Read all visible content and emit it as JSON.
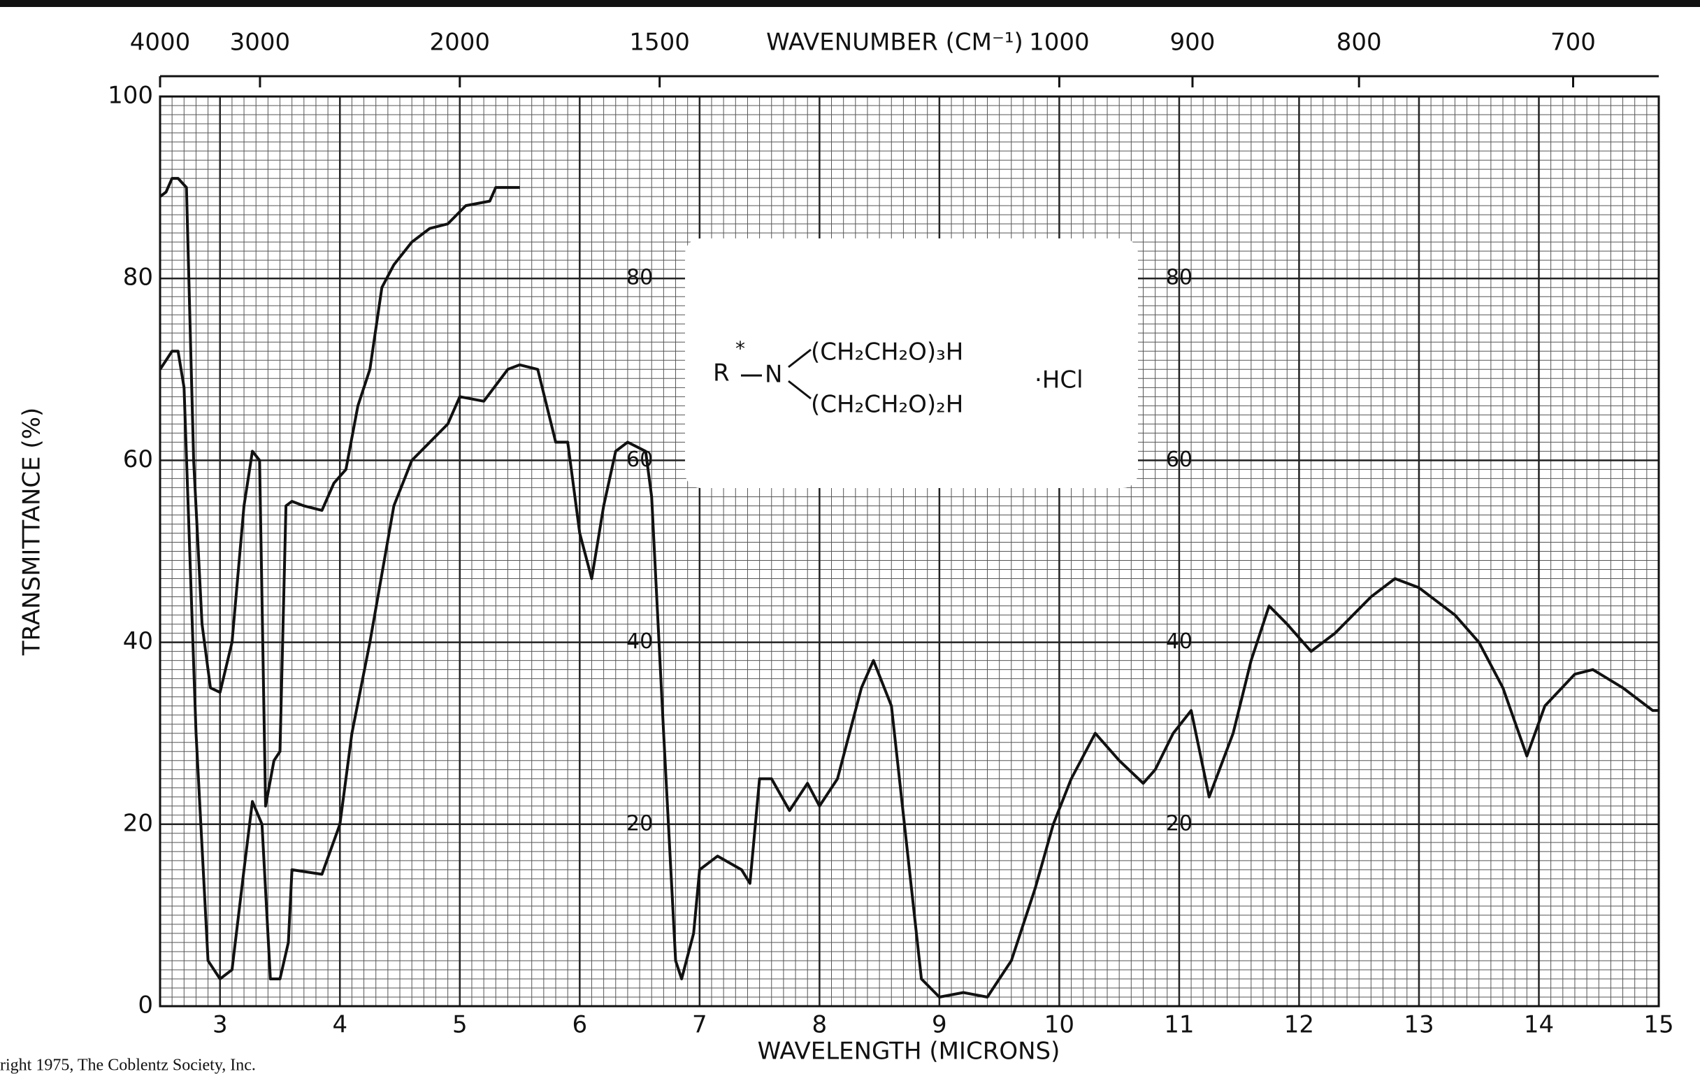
{
  "chart_data": {
    "type": "line",
    "title_top": "WAVENUMBER (CM⁻¹)",
    "xlabel": "WAVELENGTH (MICRONS)",
    "ylabel": "TRANSMITTANCE (%)",
    "xlim": [
      2.5,
      15
    ],
    "ylim": [
      0,
      100
    ],
    "xticks": [
      3,
      4,
      5,
      6,
      7,
      8,
      9,
      10,
      11,
      12,
      13,
      14,
      15
    ],
    "yticks": [
      0,
      20,
      40,
      60,
      80,
      100
    ],
    "wavenumber_ticks": [
      4000,
      3000,
      2000,
      1500,
      1000,
      900,
      800,
      700
    ],
    "inner_yticks": [
      20,
      40,
      60,
      80
    ],
    "grid": true,
    "series": [
      {
        "color": "#111111",
        "x": [
          2.5,
          2.55,
          2.6,
          2.65,
          2.72,
          2.78,
          2.85,
          2.92,
          3.0,
          3.1,
          3.2,
          3.27,
          3.33,
          3.38,
          3.45,
          3.5,
          3.55,
          3.6,
          3.7,
          3.85,
          3.95,
          4.05,
          4.15,
          4.25,
          4.35,
          4.45,
          4.6,
          4.75,
          4.9,
          5.05,
          5.25,
          5.3,
          5.5
        ],
        "values": [
          89,
          89.5,
          91,
          91,
          90,
          60,
          42,
          35,
          34.5,
          40,
          55,
          61,
          60,
          22,
          27,
          28,
          55,
          55.5,
          55,
          54.5,
          57.5,
          59,
          66,
          70,
          79,
          81.5,
          84,
          85.5,
          86,
          88,
          88.5,
          90,
          90
        ]
      },
      {
        "color": "#111111",
        "x": [
          2.5,
          2.6,
          2.65,
          2.7,
          2.8,
          2.9,
          3.0,
          3.1,
          3.2,
          3.27,
          3.35,
          3.42,
          3.5,
          3.57,
          3.6,
          3.85,
          4.0,
          4.1,
          4.25,
          4.45,
          4.6,
          4.9,
          5.0,
          5.2,
          5.4,
          5.5,
          5.65,
          5.8,
          5.9,
          6.0,
          6.1,
          6.2,
          6.3,
          6.4,
          6.55,
          6.6,
          6.7,
          6.8,
          6.85,
          6.95,
          7.0,
          7.15,
          7.35,
          7.42,
          7.5,
          7.6,
          7.75,
          7.9,
          8.0,
          8.15,
          8.35,
          8.45,
          8.6,
          8.75,
          8.85,
          9.0,
          9.2,
          9.4,
          9.6,
          9.8,
          9.95,
          10.1,
          10.3,
          10.5,
          10.7,
          10.8,
          10.95,
          11.1,
          11.25,
          11.45,
          11.6,
          11.75,
          11.9,
          12.1,
          12.3,
          12.6,
          12.8,
          13.0,
          13.3,
          13.5,
          13.7,
          13.9,
          14.05,
          14.3,
          14.45,
          14.7,
          14.95,
          15
        ],
        "values": [
          70,
          72,
          72,
          68,
          30,
          5,
          3,
          4,
          15,
          22.5,
          20,
          3,
          3,
          7,
          15,
          14.5,
          20,
          30,
          40,
          55,
          60,
          64,
          67,
          66.5,
          70,
          70.5,
          70,
          62,
          62,
          52,
          47,
          55,
          61,
          62,
          61,
          56,
          30,
          5,
          3,
          8,
          15,
          16.5,
          15,
          13.5,
          25,
          25,
          21.5,
          24.5,
          22,
          25,
          35,
          38,
          33,
          15,
          3,
          1,
          1.5,
          1,
          5,
          13,
          20,
          25,
          30,
          27,
          24.5,
          26,
          30,
          32.5,
          23,
          30,
          38,
          44,
          42,
          39,
          41,
          45,
          47,
          46,
          43,
          40,
          35,
          27.5,
          33,
          36.5,
          37,
          35,
          32.5,
          32.5
        ]
      }
    ],
    "structure": {
      "r": "R",
      "star": "*",
      "n": "N",
      "group1": "(CH₂CH₂O)₃H",
      "group2": "(CH₂CH₂O)₂H",
      "salt": "·HCl"
    },
    "copyright": "right 1975, The Coblentz Society, Inc."
  }
}
